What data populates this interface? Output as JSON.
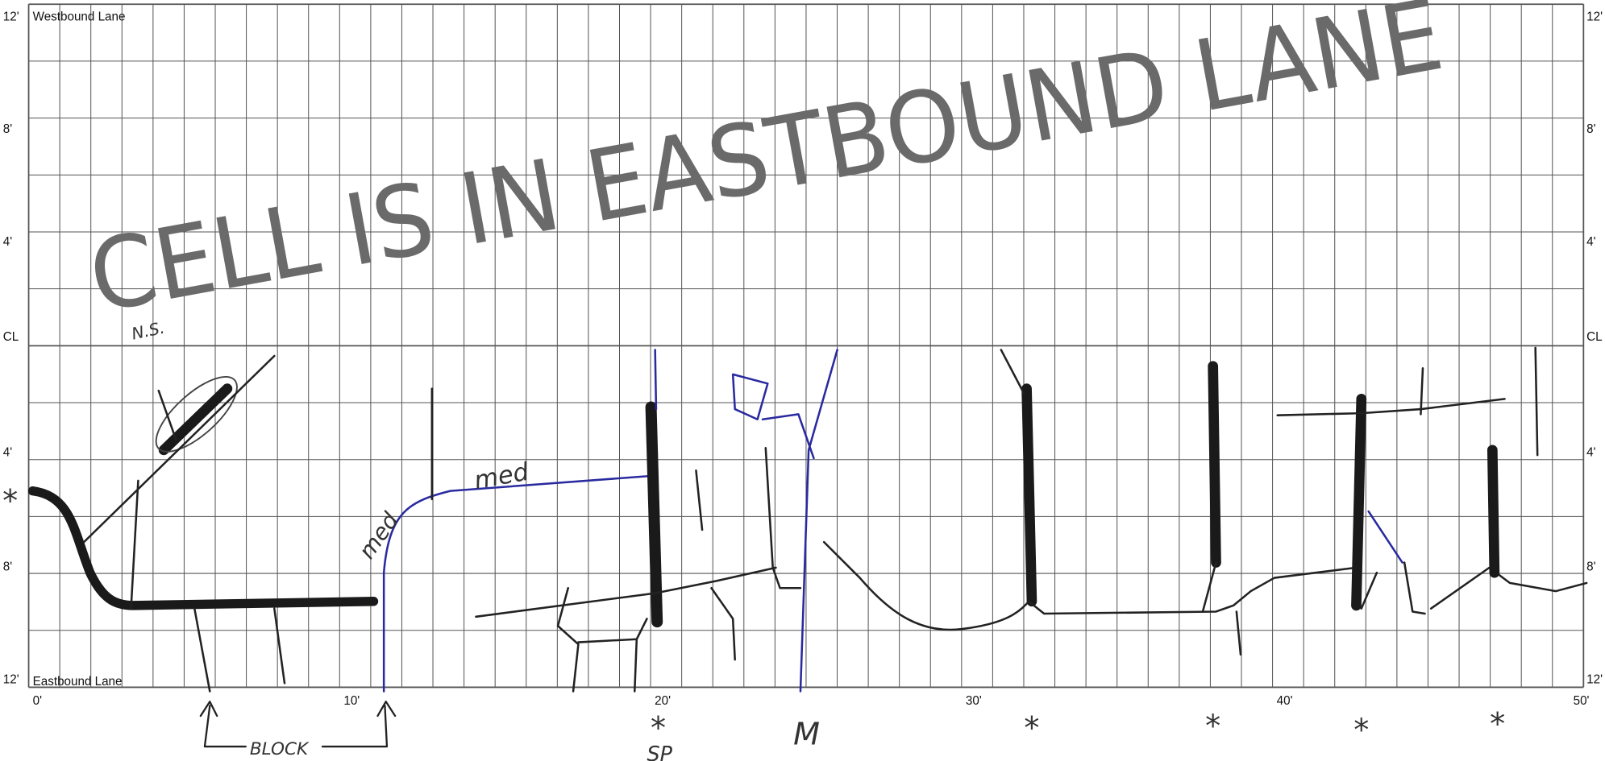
{
  "lane_labels": {
    "top": "Westbound Lane",
    "bottom": "Eastbound Lane"
  },
  "y_labels": [
    "12'",
    "8'",
    "4'",
    "CL",
    "4'",
    "8'",
    "12'"
  ],
  "x_labels": [
    "0'",
    "10'",
    "20'",
    "30'",
    "40'",
    "50'"
  ],
  "stamp": "CELL IS IN EASTBOUND LANE",
  "notes": {
    "ns": "N.S.",
    "med_1": "med",
    "med_2": "med",
    "block": "BLOCK",
    "sp": "SP",
    "m": "M"
  },
  "stars": [
    "*",
    "*",
    "*",
    "*",
    "*",
    "*"
  ]
}
